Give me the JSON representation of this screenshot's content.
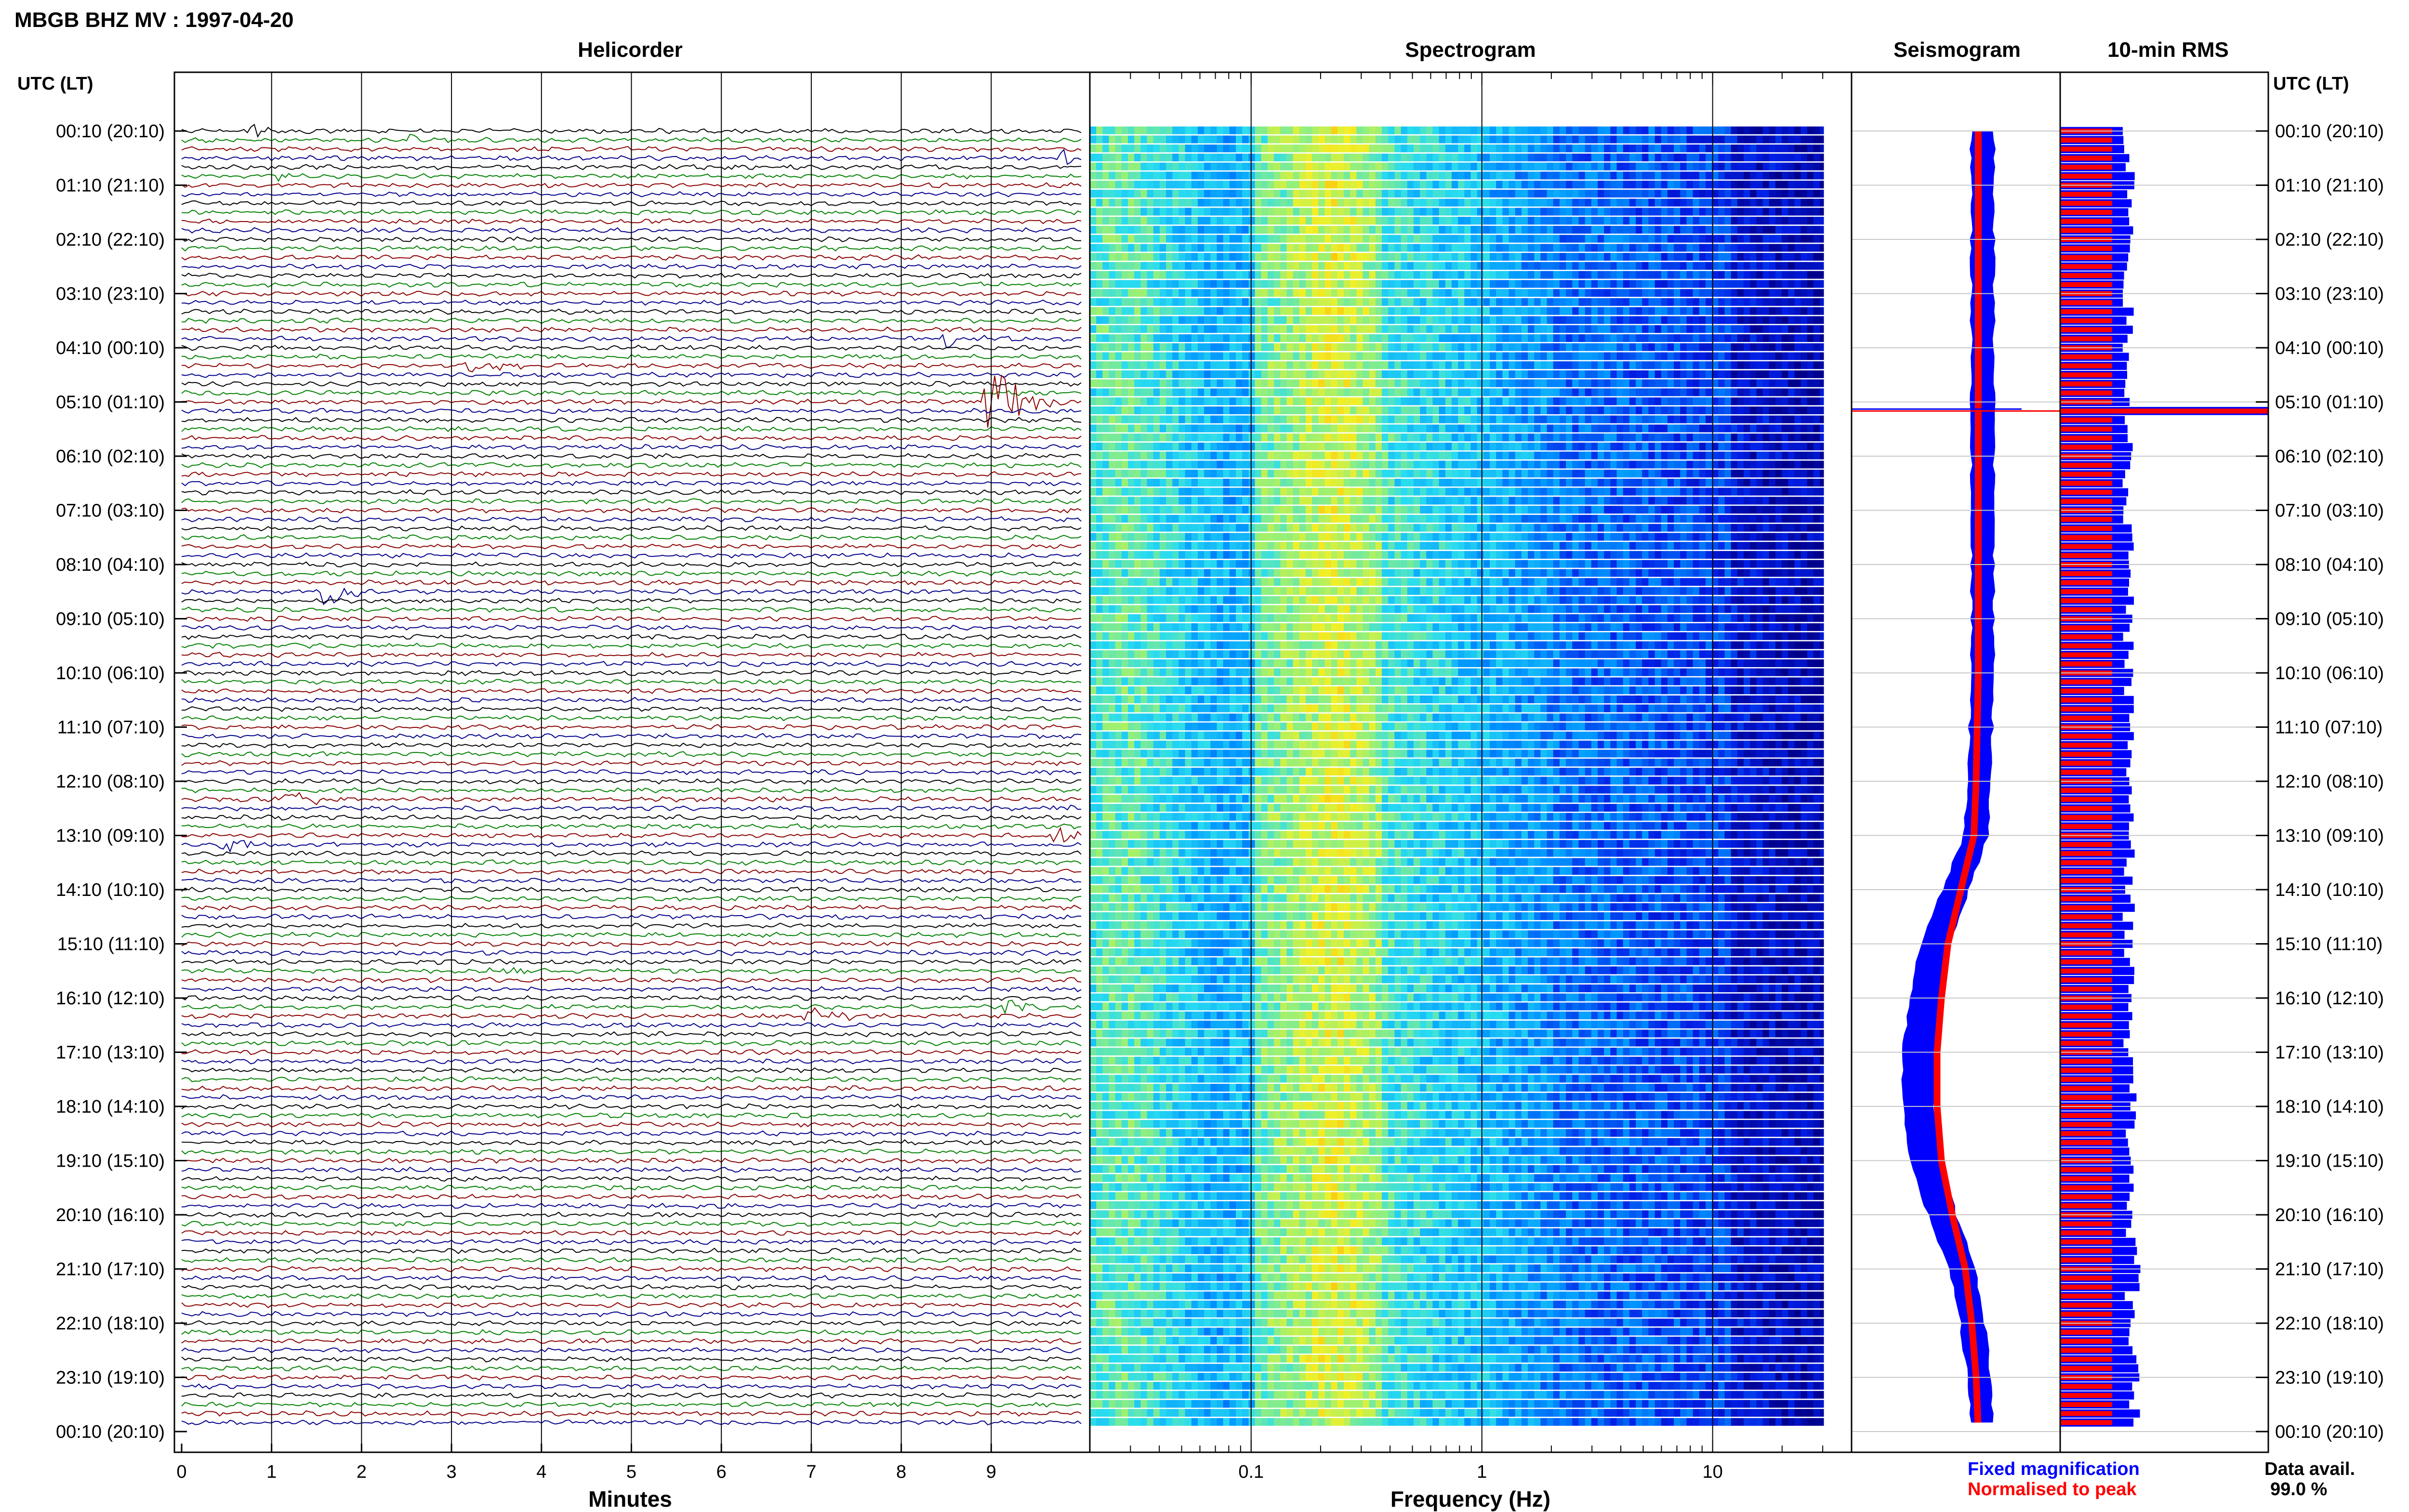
{
  "header": {
    "title": "MBGB BHZ MV : 1997-04-20",
    "utc_label_left": "UTC (LT)",
    "utc_label_right": "UTC (LT)"
  },
  "panels": {
    "helicorder": "Helicorder",
    "spectrogram": "Spectrogram",
    "seismogram": "Seismogram",
    "rms": "10-min RMS"
  },
  "axes": {
    "minutes_label": "Minutes",
    "frequency_label": "Frequency (Hz)",
    "minute_ticks": [
      "0",
      "1",
      "2",
      "3",
      "4",
      "5",
      "6",
      "7",
      "8",
      "9"
    ],
    "frequency_ticks": [
      "0.1",
      "1",
      "10"
    ]
  },
  "time_labels": [
    "00:10 (20:10)",
    "01:10 (21:10)",
    "02:10 (22:10)",
    "03:10 (23:10)",
    "04:10 (00:10)",
    "05:10 (01:10)",
    "06:10 (02:10)",
    "07:10 (03:10)",
    "08:10 (04:10)",
    "09:10 (05:10)",
    "10:10 (06:10)",
    "11:10 (07:10)",
    "12:10 (08:10)",
    "13:10 (09:10)",
    "14:10 (10:10)",
    "15:10 (11:10)",
    "16:10 (12:10)",
    "17:10 (13:10)",
    "18:10 (14:10)",
    "19:10 (15:10)",
    "20:10 (16:10)",
    "21:10 (17:10)",
    "22:10 (18:10)",
    "23:10 (19:10)",
    "00:10 (20:10)"
  ],
  "legend": {
    "fixed": "Fixed magnification",
    "normalised": "Normalised to peak",
    "fixed_color": "#0000ff",
    "normalised_color": "#ff0000"
  },
  "availability": {
    "label": "Data avail.",
    "value": "99.0 %"
  },
  "colors": {
    "trace_cycle": [
      "#000000",
      "#008000",
      "#8b0000",
      "#00008b"
    ],
    "rms_fixed": "#0000ff",
    "rms_normalised": "#ff0000"
  },
  "chart_data": {
    "type": "line",
    "title": "MBGB BHZ MV : 1997-04-20",
    "panels": [
      "Helicorder",
      "Spectrogram",
      "Seismogram",
      "10-min RMS"
    ],
    "xlabel_helicorder": "Minutes",
    "xlim_minutes": [
      0,
      10
    ],
    "xlabel_spectrogram": "Frequency (Hz)",
    "xscale_spectrogram": "log",
    "xlim_frequency": [
      0.02,
      40
    ],
    "ylabel": "UTC (LT)",
    "grid": true,
    "legend": [
      "Fixed magnification",
      "Normalised to peak"
    ],
    "legend_position": "bottom-right",
    "rows_per_hour": 6,
    "helicorder_events": [
      {
        "row": 0,
        "minute": 0.7,
        "amplitude": 1.5
      },
      {
        "row": 1,
        "minute": 2.5,
        "amplitude": 1.2
      },
      {
        "row": 3,
        "minute": 9.8,
        "amplitude": 2.0
      },
      {
        "row": 5,
        "minute": 1.0,
        "amplitude": 1.0
      },
      {
        "row": 23,
        "minute": 8.5,
        "amplitude": 1.5
      },
      {
        "row": 26,
        "minute": 3.2,
        "amplitude": 1.5
      },
      {
        "row": 30,
        "minute": 9.0,
        "amplitude": 10.0
      },
      {
        "row": 51,
        "minute": 1.6,
        "amplitude": 3.0
      },
      {
        "row": 74,
        "minute": 1.2,
        "amplitude": 2.0
      },
      {
        "row": 75,
        "minute": 9.7,
        "amplitude": 1.5
      },
      {
        "row": 78,
        "minute": 9.7,
        "amplitude": 1.5
      },
      {
        "row": 79,
        "minute": 0.5,
        "amplitude": 1.5
      },
      {
        "row": 93,
        "minute": 3.5,
        "amplitude": 1.5
      },
      {
        "row": 97,
        "minute": 9.2,
        "amplitude": 1.5
      },
      {
        "row": 98,
        "minute": 7.0,
        "amplitude": 2.0
      }
    ],
    "seismogram_envelope_hours": [
      0,
      2,
      4,
      6,
      8,
      10,
      12,
      13,
      14,
      15,
      16,
      17,
      18,
      19,
      20,
      21,
      22,
      23,
      24
    ],
    "seismogram_envelope_offset": [
      0,
      0,
      0,
      0,
      0,
      0,
      -0.05,
      -0.1,
      -0.4,
      -0.7,
      -0.85,
      -0.95,
      -0.95,
      -0.85,
      -0.6,
      -0.3,
      -0.15,
      -0.05,
      0
    ],
    "rms_normalised_level": 0.25,
    "rms_fixed_level": [
      0.3,
      0.36
    ],
    "rms_peak_row": 31,
    "data_availability_percent": 99.0
  }
}
